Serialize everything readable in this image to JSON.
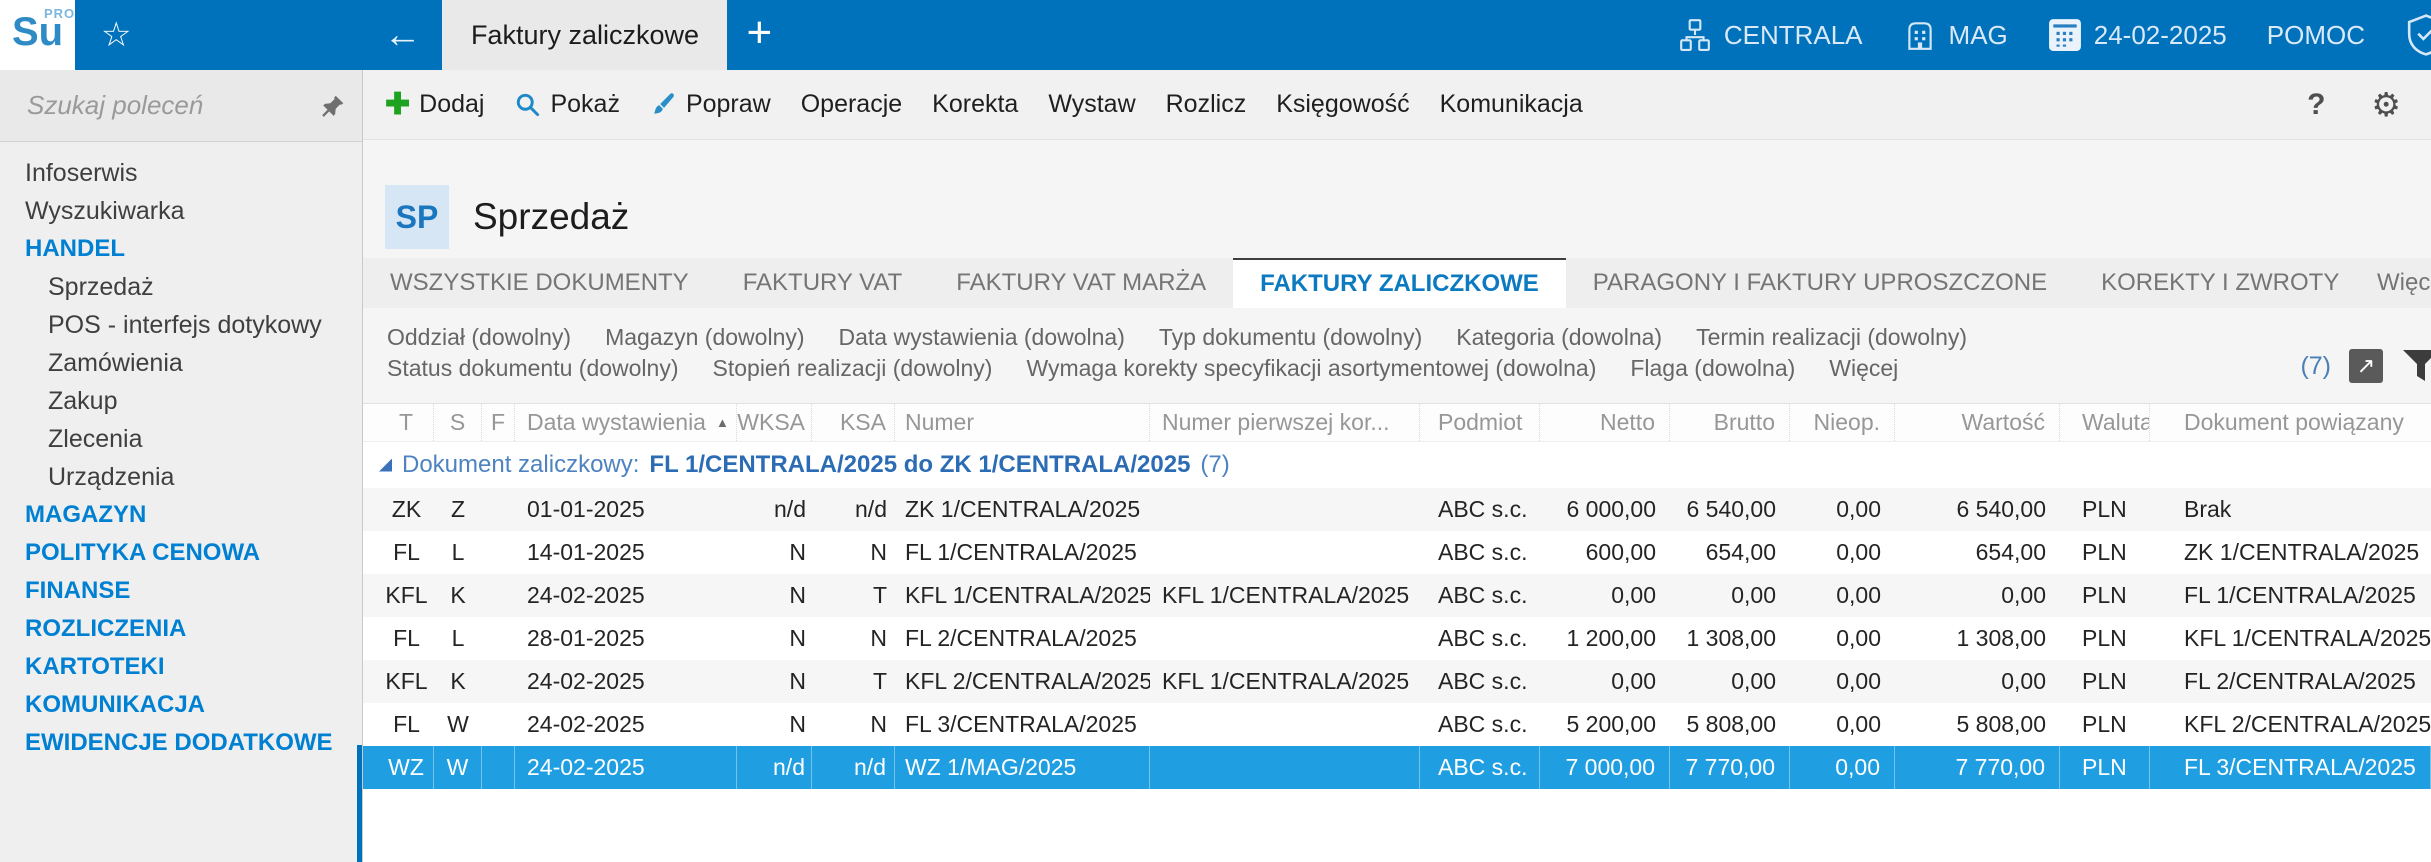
{
  "topbar": {
    "logo_text": "Su",
    "logo_sup": "PRO",
    "tab_title": "Faktury zaliczkowe",
    "branch_label": "CENTRALA",
    "warehouse_label": "MAG",
    "date": "24-02-2025",
    "help_label": "POMOC"
  },
  "sidebar": {
    "search_placeholder": "Szukaj poleceń",
    "items": [
      {
        "label": "Infoserwis",
        "type": "item"
      },
      {
        "label": "Wyszukiwarka",
        "type": "item"
      },
      {
        "label": "HANDEL",
        "type": "category"
      },
      {
        "label": "Sprzedaż",
        "type": "subitem"
      },
      {
        "label": "POS - interfejs dotykowy",
        "type": "subitem"
      },
      {
        "label": "Zamówienia",
        "type": "subitem"
      },
      {
        "label": "Zakup",
        "type": "subitem"
      },
      {
        "label": "Zlecenia",
        "type": "subitem"
      },
      {
        "label": "Urządzenia",
        "type": "subitem"
      },
      {
        "label": "MAGAZYN",
        "type": "category"
      },
      {
        "label": "POLITYKA CENOWA",
        "type": "category"
      },
      {
        "label": "FINANSE",
        "type": "category"
      },
      {
        "label": "ROZLICZENIA",
        "type": "category"
      },
      {
        "label": "KARTOTEKI",
        "type": "category"
      },
      {
        "label": "KOMUNIKACJA",
        "type": "category"
      },
      {
        "label": "EWIDENCJE DODATKOWE",
        "type": "category"
      }
    ]
  },
  "toolbar": {
    "items": [
      {
        "label": "Dodaj",
        "icon": "plus-icon"
      },
      {
        "label": "Pokaż",
        "icon": "search-icon"
      },
      {
        "label": "Popraw",
        "icon": "brush-icon"
      },
      {
        "label": "Operacje"
      },
      {
        "label": "Korekta"
      },
      {
        "label": "Wystaw"
      },
      {
        "label": "Rozlicz"
      },
      {
        "label": "Księgowość"
      },
      {
        "label": "Komunikacja"
      }
    ],
    "help_glyph": "?"
  },
  "page": {
    "badge": "SP",
    "title": "Sprzedaż"
  },
  "tabs": [
    {
      "label": "WSZYSTKIE DOKUMENTY"
    },
    {
      "label": "FAKTURY VAT"
    },
    {
      "label": "FAKTURY VAT MARŻA"
    },
    {
      "label": "FAKTURY ZALICZKOWE",
      "active": true
    },
    {
      "label": "PARAGONY I FAKTURY UPROSZCZONE"
    },
    {
      "label": "KOREKTY I ZWROTY"
    },
    {
      "label": "Więcej",
      "truncated": true
    }
  ],
  "filters": {
    "row1": [
      "Oddział (dowolny)",
      "Magazyn (dowolny)",
      "Data wystawienia (dowolna)",
      "Typ dokumentu (dowolny)",
      "Kategoria (dowolna)",
      "Termin realizacji (dowolny)"
    ],
    "row2": [
      "Status dokumentu (dowolny)",
      "Stopień realizacji (dowolny)",
      "Wymaga korekty specyfikacji asortymentowej (dowolna)",
      "Flaga (dowolna)",
      "Więcej"
    ],
    "count": "(7)"
  },
  "table": {
    "columns": [
      "T",
      "S",
      "F",
      "Data wystawienia",
      "WKSA",
      "KSA",
      "Numer",
      "Numer pierwszej kor...",
      "Podmiot",
      "Netto",
      "Brutto",
      "Nieop.",
      "Wartość",
      "Waluta",
      "Dokument powiązany"
    ],
    "sort": {
      "column": "Data wystawienia",
      "direction": "asc"
    },
    "group": {
      "label": "Dokument zaliczkowy:",
      "value": "FL 1/CENTRALA/2025 do ZK 1/CENTRALA/2025",
      "count": "(7)"
    },
    "rows": [
      {
        "selected": false,
        "cells": [
          "ZK",
          "Z",
          "",
          "01-01-2025",
          "n/d",
          "n/d",
          "ZK 1/CENTRALA/2025",
          "",
          "ABC s.c.",
          "6 000,00",
          "6 540,00",
          "0,00",
          "6 540,00",
          "PLN",
          "Brak"
        ]
      },
      {
        "selected": false,
        "cells": [
          "FL",
          "L",
          "",
          "14-01-2025",
          "N",
          "N",
          "FL 1/CENTRALA/2025",
          "",
          "ABC s.c.",
          "600,00",
          "654,00",
          "0,00",
          "654,00",
          "PLN",
          "ZK 1/CENTRALA/2025"
        ]
      },
      {
        "selected": false,
        "cells": [
          "KFL",
          "K",
          "",
          "24-02-2025",
          "N",
          "T",
          "KFL 1/CENTRALA/2025",
          "KFL 1/CENTRALA/2025",
          "ABC s.c.",
          "0,00",
          "0,00",
          "0,00",
          "0,00",
          "PLN",
          "FL 1/CENTRALA/2025"
        ]
      },
      {
        "selected": false,
        "cells": [
          "FL",
          "L",
          "",
          "28-01-2025",
          "N",
          "N",
          "FL 2/CENTRALA/2025",
          "",
          "ABC s.c.",
          "1 200,00",
          "1 308,00",
          "0,00",
          "1 308,00",
          "PLN",
          "KFL 1/CENTRALA/2025"
        ]
      },
      {
        "selected": false,
        "cells": [
          "KFL",
          "K",
          "",
          "24-02-2025",
          "N",
          "T",
          "KFL 2/CENTRALA/2025",
          "KFL 1/CENTRALA/2025",
          "ABC s.c.",
          "0,00",
          "0,00",
          "0,00",
          "0,00",
          "PLN",
          "FL 2/CENTRALA/2025"
        ]
      },
      {
        "selected": false,
        "cells": [
          "FL",
          "W",
          "",
          "24-02-2025",
          "N",
          "N",
          "FL 3/CENTRALA/2025",
          "",
          "ABC s.c.",
          "5 200,00",
          "5 808,00",
          "0,00",
          "5 808,00",
          "PLN",
          "KFL 2/CENTRALA/2025"
        ]
      },
      {
        "selected": true,
        "cells": [
          "WZ",
          "W",
          "",
          "24-02-2025",
          "n/d",
          "n/d",
          "WZ 1/MAG/2025",
          "",
          "ABC s.c.",
          "7 000,00",
          "7 770,00",
          "0,00",
          "7 770,00",
          "PLN",
          "FL 3/CENTRALA/2025"
        ]
      }
    ]
  },
  "colors": {
    "accent": "#0072bc",
    "selection": "#1f9fe2",
    "category_blue": "#0080d2",
    "active_tab_blue": "#0b7ac1"
  }
}
